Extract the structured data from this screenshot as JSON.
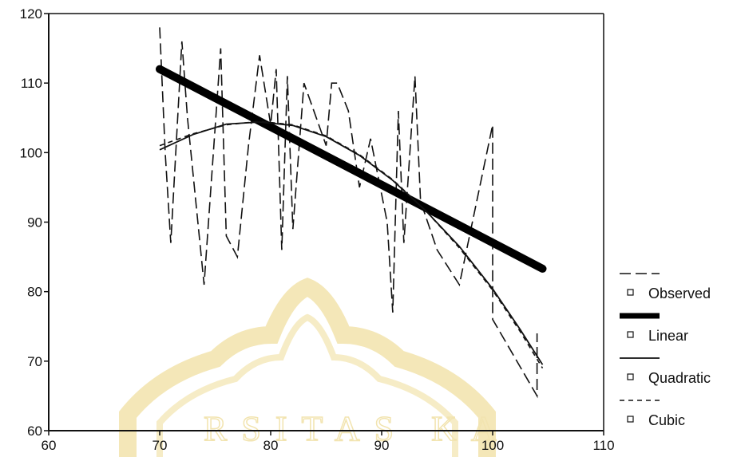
{
  "chart_data": {
    "type": "line",
    "x_range": [
      60,
      110
    ],
    "y_range": [
      60,
      120
    ],
    "x_ticks": [
      60,
      70,
      80,
      90,
      100,
      110
    ],
    "y_ticks": [
      60,
      70,
      80,
      90,
      100,
      110,
      120
    ],
    "grid": false,
    "legend_position": "right",
    "series": [
      {
        "name": "Observed",
        "style": "long-dash",
        "x": [
          70,
          70.5,
          71,
          72,
          72.5,
          74,
          75.5,
          76,
          77,
          78,
          79,
          80,
          80.5,
          81,
          81.5,
          82,
          83,
          85,
          85.5,
          86,
          87,
          88,
          89,
          90.5,
          91,
          91.5,
          92,
          93,
          93.5,
          95,
          97,
          100,
          100,
          104,
          104
        ],
        "y": [
          118,
          100,
          87,
          116,
          105,
          81,
          115,
          88,
          85,
          101,
          114,
          104,
          112,
          86,
          111,
          89,
          110,
          101,
          110,
          110,
          106,
          95,
          102,
          90,
          77,
          106,
          87,
          111,
          93,
          86,
          81,
          104,
          76,
          65,
          74
        ]
      },
      {
        "name": "Linear",
        "style": "thick",
        "x": [
          70,
          104.5
        ],
        "y": [
          112,
          83.3
        ]
      },
      {
        "name": "Quadratic",
        "style": "solid",
        "x": [
          70,
          73,
          76,
          79,
          82,
          85,
          88,
          91,
          94,
          97,
          100,
          102.5,
          104.5
        ],
        "y": [
          100.4,
          102.6,
          104.1,
          104.4,
          103.9,
          102.3,
          99.6,
          96.0,
          91.6,
          86.5,
          80.4,
          74.5,
          69.5
        ]
      },
      {
        "name": "Cubic",
        "style": "short-dash",
        "x": [
          70,
          73,
          76,
          79,
          82,
          85,
          88,
          91,
          94,
          97,
          100,
          102.5,
          104.5
        ],
        "y": [
          101.0,
          102.7,
          104.0,
          104.5,
          104.0,
          102.4,
          99.7,
          96.1,
          91.6,
          86.3,
          80.2,
          74.2,
          69.0
        ]
      }
    ],
    "legend": [
      {
        "label": "Observed",
        "style": "long-dash"
      },
      {
        "label": "Linear",
        "style": "thick"
      },
      {
        "label": "Quadratic",
        "style": "solid"
      },
      {
        "label": "Cubic",
        "style": "short-dash"
      }
    ],
    "watermark_letters": "RSITAS  KA",
    "watermark_color": "#f2e4b0"
  }
}
